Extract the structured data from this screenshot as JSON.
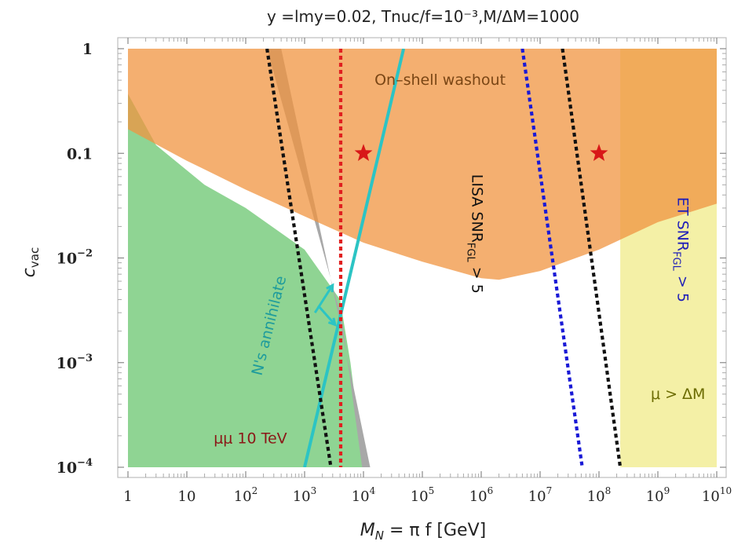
{
  "chart_data": {
    "type": "area",
    "title": "y =lmy=0.02, Tnuc/f=10⁻³,M/ΔM=1000",
    "xlabel": "M_N = π f [GeV]",
    "ylabel": "c_vac",
    "x_scale": "log",
    "y_scale": "log",
    "xlim": [
      1,
      10000000000
    ],
    "ylim": [
      0.0001,
      1
    ],
    "x_ticks": [
      {
        "value": 1,
        "label": "1"
      },
      {
        "value": 10,
        "label": "10"
      },
      {
        "value": 100,
        "label": "10^2"
      },
      {
        "value": 1000,
        "label": "10^3"
      },
      {
        "value": 10000,
        "label": "10^4"
      },
      {
        "value": 100000,
        "label": "10^5"
      },
      {
        "value": 1000000,
        "label": "10^6"
      },
      {
        "value": 10000000,
        "label": "10^7"
      },
      {
        "value": 100000000,
        "label": "10^8"
      },
      {
        "value": 1000000000,
        "label": "10^9"
      },
      {
        "value": 10000000000,
        "label": "10^10"
      }
    ],
    "y_ticks": [
      {
        "value": 1,
        "label": "1"
      },
      {
        "value": 0.1,
        "label": "0.1"
      },
      {
        "value": 0.01,
        "label": "10^-2"
      },
      {
        "value": 0.001,
        "label": "10^-3"
      },
      {
        "value": 0.0001,
        "label": "10^-4"
      }
    ],
    "regions": [
      {
        "name": "mumu",
        "label": "μμ 10 TeV",
        "color": "#8fd493",
        "points": [
          [
            1,
            0.0001
          ],
          [
            1,
            0.37
          ],
          [
            3,
            0.12
          ],
          [
            20,
            0.05
          ],
          [
            100,
            0.03
          ],
          [
            1000,
            0.012
          ],
          [
            4000,
            0.004
          ],
          [
            6000,
            0.001
          ],
          [
            10000,
            0.0001
          ]
        ]
      },
      {
        "name": "grey-band",
        "label": "",
        "color": "#a8a8a8",
        "points": [
          [
            400,
            1
          ],
          [
            4300,
            0.002
          ],
          [
            13000,
            0.0001
          ],
          [
            9500,
            0.0001
          ],
          [
            4300,
            0.0026
          ],
          [
            230,
            1
          ]
        ]
      },
      {
        "name": "mu-gt-deltaM",
        "label": "μ > ΔM",
        "color": "#f4f0a6",
        "points": [
          [
            230000000,
            0.0001
          ],
          [
            230000000,
            1
          ],
          [
            10000000000,
            1
          ],
          [
            10000000000,
            0.0001
          ]
        ]
      },
      {
        "name": "washout",
        "label": "On–shell washout",
        "color": "#f09440",
        "opacity": 0.75,
        "points": [
          [
            1,
            1
          ],
          [
            10000000000,
            1
          ],
          [
            10000000000,
            0.033
          ],
          [
            1000000000,
            0.022
          ],
          [
            100000000,
            0.012
          ],
          [
            10000000,
            0.0075
          ],
          [
            2000000,
            0.0062
          ],
          [
            1000000,
            0.0064
          ],
          [
            100000,
            0.0092
          ],
          [
            10000,
            0.014
          ],
          [
            1000,
            0.025
          ],
          [
            100,
            0.045
          ],
          [
            10,
            0.085
          ],
          [
            1,
            0.17
          ]
        ]
      }
    ],
    "lines": [
      {
        "name": "nr-annihilate",
        "label": "N's annihilate",
        "color": "#2cc4c4",
        "style": "solid",
        "points": [
          [
            1000,
            0.0001
          ],
          [
            48000,
            1
          ]
        ]
      },
      {
        "name": "lisa-bound",
        "label": "",
        "color": "#111111",
        "style": "dotted",
        "points": [
          [
            230,
            1
          ],
          [
            2800,
            0.0001
          ]
        ]
      },
      {
        "name": "red-line",
        "label": "",
        "color": "#e02020",
        "style": "dotted",
        "points": [
          [
            4100,
            1
          ],
          [
            4100,
            0.0001
          ]
        ]
      },
      {
        "name": "blue-line",
        "label": "",
        "color": "#1a1ad6",
        "style": "dotted",
        "points": [
          [
            5000000,
            1
          ],
          [
            52000000,
            0.0001
          ]
        ]
      },
      {
        "name": "et-bound",
        "label": "",
        "color": "#111111",
        "style": "dotted",
        "points": [
          [
            24000000,
            1
          ],
          [
            230000000,
            0.0001
          ]
        ]
      }
    ],
    "stars": [
      {
        "x": 10000,
        "y": 0.1,
        "color": "#d81818"
      },
      {
        "x": 100000000,
        "y": 0.1,
        "color": "#d81818"
      }
    ],
    "annotations": [
      {
        "name": "washout-label",
        "text": "On–shell washout",
        "x": 200000,
        "y": 0.45,
        "color": "#7a4615"
      },
      {
        "name": "lisa-label",
        "text": "LISA SNR",
        "sub": "FGL",
        "tail": " > 5",
        "x": 700000,
        "y": 0.017,
        "rotate": 90,
        "color": "#111111"
      },
      {
        "name": "et-label",
        "text": "ET SNR",
        "sub": "FGL",
        "tail": " > 5",
        "x": 2200000000,
        "y": 0.012,
        "rotate": 90,
        "color": "#1f1fb8"
      },
      {
        "name": "nr-label",
        "text": "N's annihilate",
        "x": 300,
        "y": 0.0022,
        "rotate": -76,
        "color": "#1f9c9c"
      },
      {
        "name": "mumu-label",
        "text": "μμ 10 TeV",
        "x": 120,
        "y": 0.00017,
        "color": "#8b1818"
      },
      {
        "name": "mu-label",
        "text": "μ > ΔM",
        "x": 2200000000,
        "y": 0.00045,
        "color": "#6b6b00"
      }
    ],
    "arrows": [
      {
        "name": "arrow-1",
        "from": [
          1500,
          0.003
        ],
        "to": [
          3000,
          0.0055
        ],
        "head": "right",
        "color": "#2cc4c4"
      },
      {
        "name": "arrow-2",
        "from": [
          1700,
          0.0035
        ],
        "to": [
          3300,
          0.0023
        ],
        "head": "down",
        "color": "#2cc4c4"
      }
    ],
    "grid": false,
    "legend": "none"
  }
}
